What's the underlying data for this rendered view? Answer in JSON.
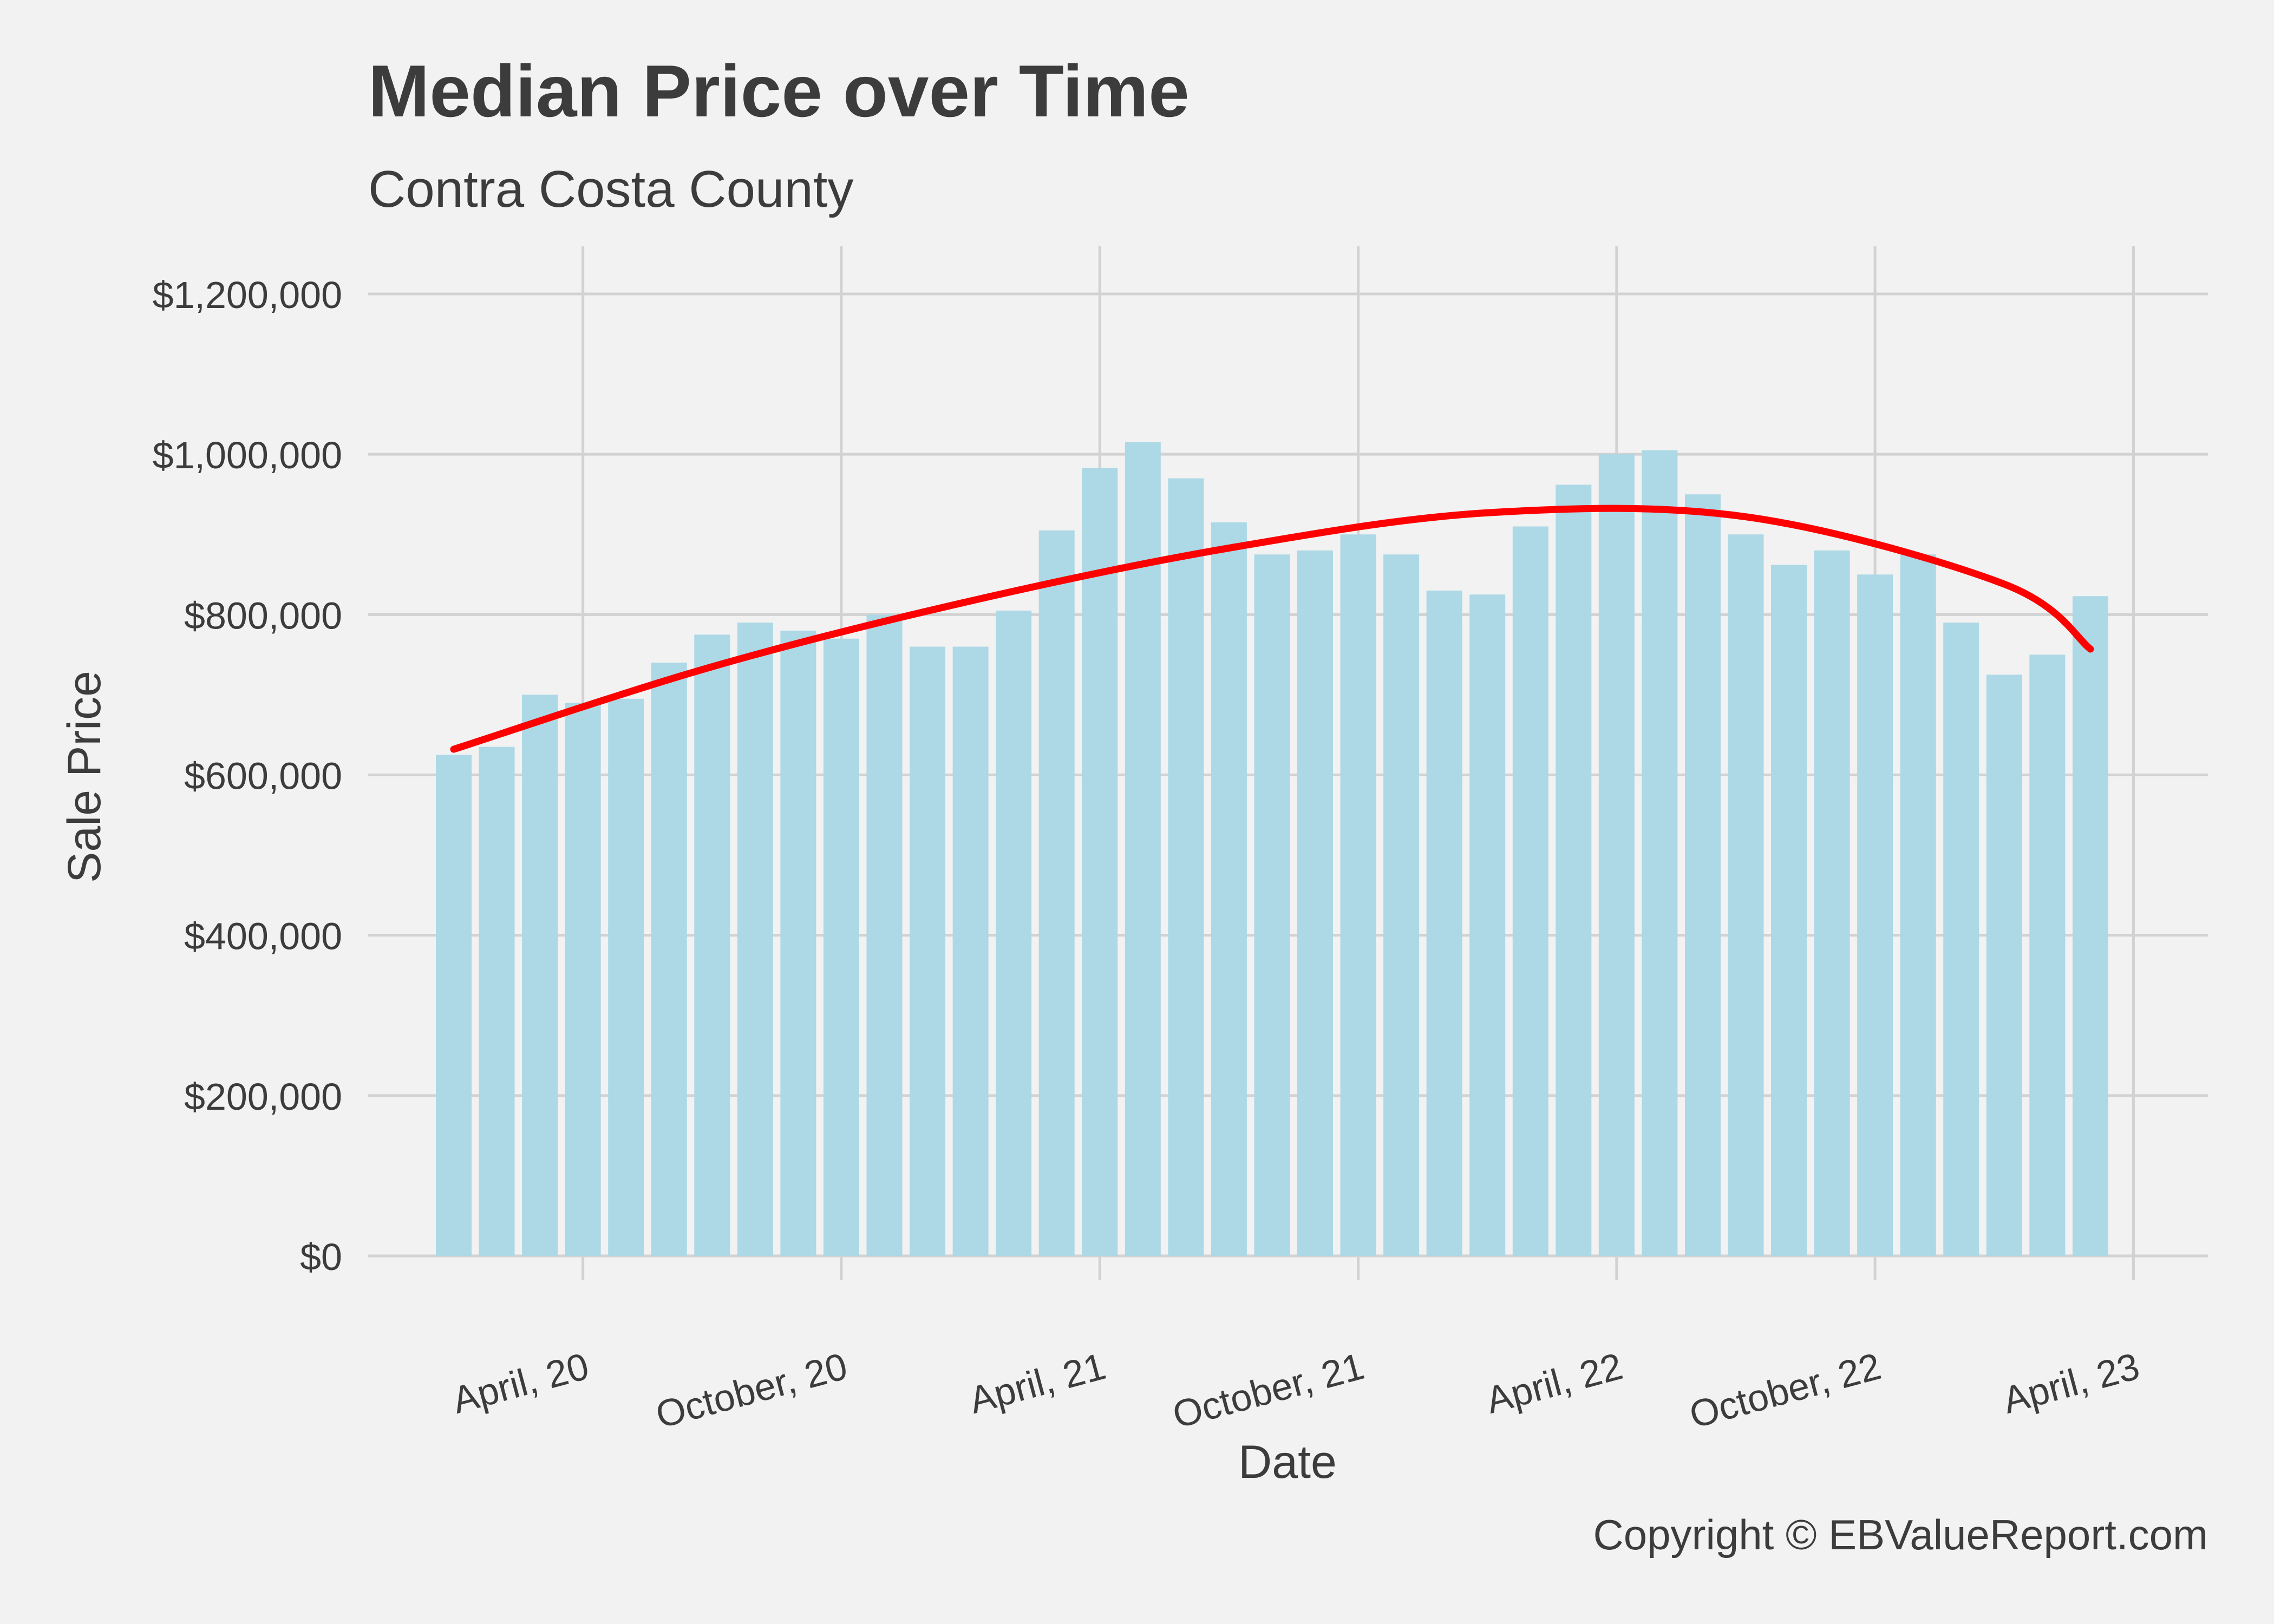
{
  "title": "Median Price over Time",
  "subtitle": "Contra Costa County",
  "copyright": "Copyright  © EBValueReport.com",
  "colors": {
    "background": "#f2f2f2",
    "bar": "#add8e6",
    "trend": "#ff0000",
    "grid": "#d2d2d2",
    "text": "#3c3c3c"
  },
  "chart_data": {
    "type": "bar",
    "xlabel": "Date",
    "ylabel": "Sale Price",
    "ylim": [
      0,
      1200000
    ],
    "y_ticks": [
      0,
      200000,
      400000,
      600000,
      800000,
      1000000,
      1200000
    ],
    "y_tick_labels": [
      "$0",
      "$200,000",
      "$400,000",
      "$600,000",
      "$800,000",
      "$1,000,000",
      "$1,200,000"
    ],
    "x_ticks": [
      "2020-04",
      "2020-10",
      "2021-04",
      "2021-10",
      "2022-04",
      "2022-10",
      "2023-04"
    ],
    "x_tick_labels": [
      "April, 20",
      "October, 20",
      "April, 21",
      "October, 21",
      "April, 22",
      "October, 22",
      "April, 23"
    ],
    "grid": true,
    "legend": "none",
    "categories": [
      "2020-01",
      "2020-02",
      "2020-03",
      "2020-04",
      "2020-05",
      "2020-06",
      "2020-07",
      "2020-08",
      "2020-09",
      "2020-10",
      "2020-11",
      "2020-12",
      "2021-01",
      "2021-02",
      "2021-03",
      "2021-04",
      "2021-05",
      "2021-06",
      "2021-07",
      "2021-08",
      "2021-09",
      "2021-10",
      "2021-11",
      "2021-12",
      "2022-01",
      "2022-02",
      "2022-03",
      "2022-04",
      "2022-05",
      "2022-06",
      "2022-07",
      "2022-08",
      "2022-09",
      "2022-10",
      "2022-11",
      "2022-12",
      "2023-01",
      "2023-02",
      "2023-03"
    ],
    "values": [
      625000,
      635000,
      700000,
      690000,
      695000,
      740000,
      775000,
      790000,
      780000,
      770000,
      800000,
      760000,
      760000,
      805000,
      905000,
      983000,
      1015000,
      970000,
      915000,
      875000,
      880000,
      900000,
      875000,
      830000,
      825000,
      910000,
      962000,
      1000000,
      1005000,
      950000,
      900000,
      862000,
      880000,
      850000,
      875000,
      790000,
      725000,
      750000,
      823000
    ],
    "trend": {
      "type": "line",
      "x": [
        "2020-01",
        "2020-07",
        "2021-01",
        "2021-07",
        "2022-01",
        "2022-07",
        "2023-01",
        "2023-03"
      ],
      "values": [
        632000,
        735000,
        817000,
        883000,
        927000,
        922000,
        838000,
        757000
      ]
    }
  }
}
